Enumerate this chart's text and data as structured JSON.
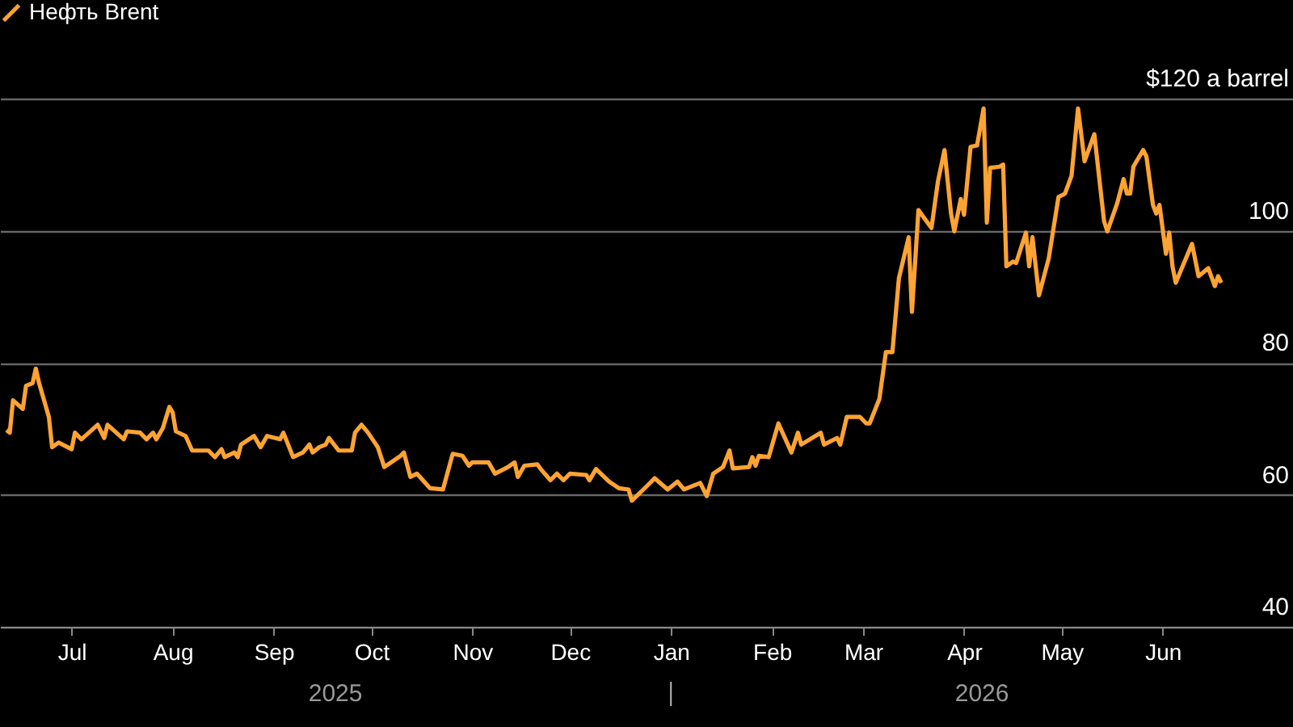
{
  "chart_data": {
    "type": "line",
    "legend": "top left",
    "grid": "y",
    "xlim": [
      "2025-06-09",
      "2026-07-11"
    ],
    "xticks": [
      {
        "value": "2025-07-01",
        "label": "Jul"
      },
      {
        "value": "2025-08-01",
        "label": "Aug"
      },
      {
        "value": "2025-09-01",
        "label": "Sep"
      },
      {
        "value": "2025-10-01",
        "label": "Oct"
      },
      {
        "value": "2025-11-01",
        "label": "Nov"
      },
      {
        "value": "2025-12-01",
        "label": "Dec"
      },
      {
        "value": "2026-01-01",
        "label": "Jan"
      },
      {
        "value": "2026-02-01",
        "label": "Feb"
      },
      {
        "value": "2026-03-01",
        "label": "Mar"
      },
      {
        "value": "2026-04-01",
        "label": "Apr"
      },
      {
        "value": "2026-05-01",
        "label": "May"
      },
      {
        "value": "2026-06-01",
        "label": "Jun"
      }
    ],
    "ylim": [
      40,
      120
    ],
    "yticks": [
      40,
      60,
      80,
      100,
      {
        "value": 120,
        "label": "$120 a barrel"
      }
    ],
    "annotations": [
      "2025",
      "2026"
    ],
    "x": [
      "2025-06-11",
      "2025-06-12",
      "2025-06-13",
      "2025-06-16",
      "2025-06-17",
      "2025-06-19",
      "2025-06-20",
      "2025-06-21",
      "2025-06-24",
      "2025-06-25",
      "2025-06-27",
      "2025-07-01",
      "2025-07-02",
      "2025-07-04",
      "2025-07-09",
      "2025-07-11",
      "2025-07-12",
      "2025-07-17",
      "2025-07-18",
      "2025-07-22",
      "2025-07-24",
      "2025-07-26",
      "2025-07-27",
      "2025-07-29",
      "2025-07-31",
      "2025-08-01",
      "2025-08-02",
      "2025-08-05",
      "2025-08-07",
      "2025-08-12",
      "2025-08-14",
      "2025-08-16",
      "2025-08-17",
      "2025-08-20",
      "2025-08-21",
      "2025-08-22",
      "2025-08-26",
      "2025-08-28",
      "2025-08-30",
      "2025-09-03",
      "2025-09-04",
      "2025-09-07",
      "2025-09-10",
      "2025-09-12",
      "2025-09-13",
      "2025-09-15",
      "2025-09-17",
      "2025-09-18",
      "2025-09-21",
      "2025-09-25",
      "2025-09-26",
      "2025-09-28",
      "2025-09-30",
      "2025-10-03",
      "2025-10-05",
      "2025-10-10",
      "2025-10-11",
      "2025-10-13",
      "2025-10-15",
      "2025-10-19",
      "2025-10-23",
      "2025-10-26",
      "2025-10-29",
      "2025-10-31",
      "2025-11-01",
      "2025-11-06",
      "2025-11-08",
      "2025-11-12",
      "2025-11-14",
      "2025-11-15",
      "2025-11-17",
      "2025-11-21",
      "2025-11-22",
      "2025-11-25",
      "2025-11-27",
      "2025-11-29",
      "2025-12-01",
      "2025-12-06",
      "2025-12-07",
      "2025-12-09",
      "2025-12-13",
      "2025-12-16",
      "2025-12-19",
      "2025-12-20",
      "2025-12-25",
      "2025-12-27",
      "2025-12-31",
      "2026-01-03",
      "2026-01-05",
      "2026-01-10",
      "2026-01-12",
      "2026-01-14",
      "2026-01-17",
      "2026-01-19",
      "2026-01-20",
      "2026-01-25",
      "2026-01-26",
      "2026-01-27",
      "2026-01-28",
      "2026-01-31",
      "2026-02-03",
      "2026-02-07",
      "2026-02-09",
      "2026-02-10",
      "2026-02-16",
      "2026-02-17",
      "2026-02-21",
      "2026-02-22",
      "2026-02-24",
      "2026-02-28",
      "2026-03-02",
      "2026-03-03",
      "2026-03-06",
      "2026-03-08",
      "2026-03-10",
      "2026-03-12",
      "2026-03-15",
      "2026-03-16",
      "2026-03-18",
      "2026-03-22",
      "2026-03-24",
      "2026-03-26",
      "2026-03-28",
      "2026-03-29",
      "2026-03-31",
      "2026-04-01",
      "2026-04-03",
      "2026-04-05",
      "2026-04-07",
      "2026-04-08",
      "2026-04-09",
      "2026-04-12",
      "2026-04-13",
      "2026-04-14",
      "2026-04-16",
      "2026-04-17",
      "2026-04-20",
      "2026-04-21",
      "2026-04-22",
      "2026-04-24",
      "2026-04-27",
      "2026-04-30",
      "2026-05-02",
      "2026-05-04",
      "2026-05-06",
      "2026-05-08",
      "2026-05-11",
      "2026-05-14",
      "2026-05-15",
      "2026-05-18",
      "2026-05-20",
      "2026-05-21",
      "2026-05-22",
      "2026-05-23",
      "2026-05-26",
      "2026-05-27",
      "2026-05-29",
      "2026-05-30",
      "2026-05-31",
      "2026-06-02",
      "2026-06-03",
      "2026-06-04",
      "2026-06-05",
      "2026-06-10",
      "2026-06-12",
      "2026-06-15",
      "2026-06-17",
      "2026-06-18",
      "2026-06-19"
    ],
    "series": [
      {
        "name": "Нефть Brent",
        "color": "#ffa332",
        "values": [
          69.8,
          69.4,
          74.3,
          73.0,
          76.5,
          76.9,
          79.1,
          76.9,
          71.8,
          67.2,
          67.9,
          66.9,
          69.4,
          68.4,
          70.6,
          68.6,
          70.6,
          68.4,
          69.6,
          69.4,
          68.4,
          69.4,
          68.4,
          70.1,
          73.3,
          72.5,
          69.6,
          68.9,
          66.7,
          66.7,
          65.7,
          66.9,
          65.7,
          66.4,
          65.7,
          67.6,
          68.9,
          67.2,
          68.9,
          68.4,
          69.4,
          65.7,
          66.4,
          67.6,
          66.4,
          67.2,
          67.6,
          68.6,
          66.7,
          66.7,
          69.4,
          70.6,
          69.4,
          67.2,
          64.2,
          65.9,
          66.4,
          62.7,
          63.2,
          61.0,
          60.8,
          66.2,
          65.9,
          64.4,
          64.9,
          64.9,
          63.2,
          64.2,
          64.9,
          62.7,
          64.4,
          64.6,
          63.9,
          62.2,
          63.2,
          62.2,
          63.2,
          63.0,
          62.2,
          63.9,
          62.0,
          61.0,
          60.8,
          59.1,
          61.5,
          62.5,
          60.8,
          62.0,
          60.8,
          61.8,
          59.8,
          63.2,
          64.2,
          66.7,
          64.0,
          64.2,
          65.7,
          64.4,
          65.9,
          65.7,
          70.8,
          66.4,
          69.4,
          67.6,
          69.4,
          67.6,
          68.6,
          67.6,
          71.8,
          71.8,
          70.8,
          70.8,
          74.5,
          81.6,
          81.6,
          92.8,
          99.0,
          87.7,
          103.1,
          100.4,
          107.5,
          112.2,
          102.6,
          99.9,
          104.8,
          102.4,
          112.7,
          112.9,
          118.5,
          101.2,
          109.5,
          109.7,
          110.0,
          94.6,
          95.3,
          95.1,
          99.7,
          94.6,
          99.0,
          90.2,
          95.8,
          105.1,
          105.6,
          108.3,
          118.5,
          110.5,
          114.6,
          101.4,
          99.9,
          104.1,
          107.8,
          105.6,
          105.6,
          109.7,
          112.2,
          111.2,
          103.9,
          102.6,
          103.9,
          96.5,
          99.7,
          94.6,
          92.1,
          98.0,
          93.1,
          94.3,
          91.6,
          93.1,
          92.1
        ]
      }
    ]
  }
}
